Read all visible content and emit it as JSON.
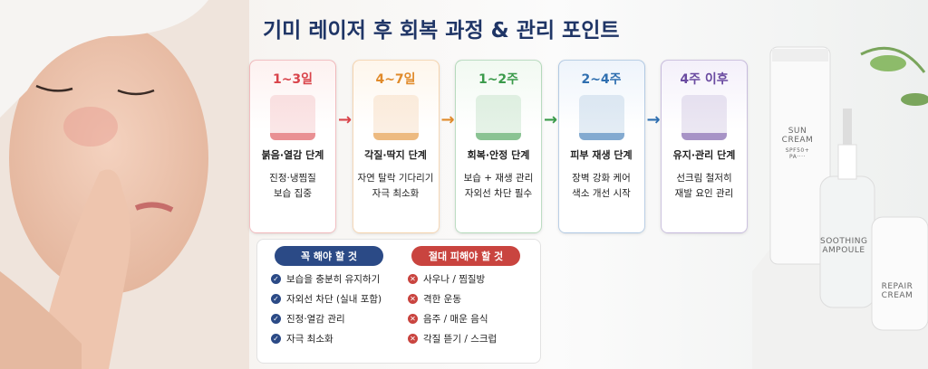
{
  "title": "기미 레이저 후 회복 과정 & 관리 포인트",
  "stages": [
    {
      "period": "1~3일",
      "name": "붉음·열감 단계",
      "desc": [
        "진정·냉찜질",
        "보습 집중"
      ]
    },
    {
      "period": "4~7일",
      "name": "각질·딱지 단계",
      "desc": [
        "자연 탈락 기다리기",
        "자극 최소화"
      ]
    },
    {
      "period": "1~2주",
      "name": "회복·안정 단계",
      "desc": [
        "보습 + 재생 관리",
        "자외선 차단 필수"
      ]
    },
    {
      "period": "2~4주",
      "name": "피부 재생 단계",
      "desc": [
        "장벽 강화 케어",
        "색소 개선 시작"
      ]
    },
    {
      "period": "4주 이후",
      "name": "유지·관리 단계",
      "desc": [
        "선크림 철저히",
        "재발 요인 관리"
      ]
    }
  ],
  "do": {
    "title": "꼭 해야 할 것",
    "items": [
      "보습을 충분히 유지하기",
      "자외선 차단 (실내 포함)",
      "진정·열감 관리",
      "자극 최소화"
    ]
  },
  "dont": {
    "title": "절대 피해야 할 것",
    "items": [
      "사우나 / 찜질방",
      "격한 운동",
      "음주 / 매운 음식",
      "각질 뜯기 / 스크럽"
    ]
  },
  "products": [
    {
      "label": "SUN CREAM",
      "sub": "SPF50+ PA····"
    },
    {
      "label": "SOOTHING AMPOULE"
    },
    {
      "label": "REPAIR CREAM"
    }
  ]
}
